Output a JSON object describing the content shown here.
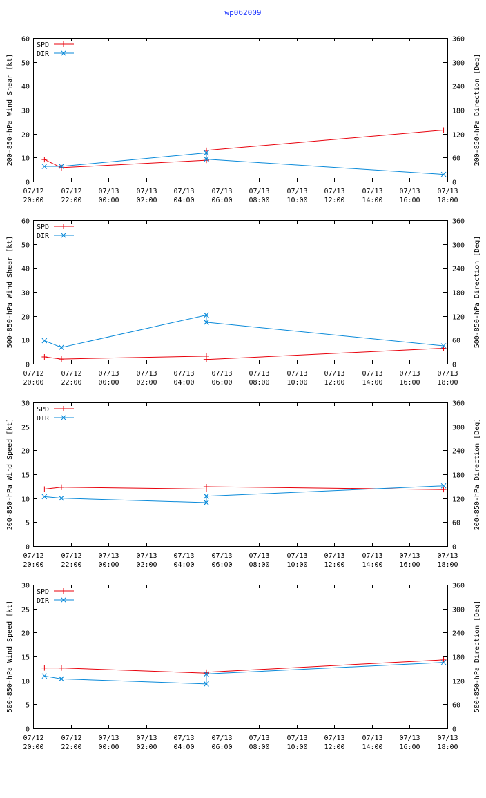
{
  "page_title": "wp062009",
  "colors": {
    "spd": "#e8000b",
    "dir": "#0a8ad9",
    "axis": "#000000",
    "text": "#000000",
    "title": "#1a33ff"
  },
  "x_tick_labels": [
    [
      "07/12",
      "20:00"
    ],
    [
      "07/12",
      "22:00"
    ],
    [
      "07/13",
      "00:00"
    ],
    [
      "07/13",
      "02:00"
    ],
    [
      "07/13",
      "04:00"
    ],
    [
      "07/13",
      "06:00"
    ],
    [
      "07/13",
      "08:00"
    ],
    [
      "07/13",
      "10:00"
    ],
    [
      "07/13",
      "12:00"
    ],
    [
      "07/13",
      "14:00"
    ],
    [
      "07/13",
      "16:00"
    ],
    [
      "07/13",
      "18:00"
    ]
  ],
  "legend_labels": {
    "spd": "SPD",
    "dir": "DIR"
  },
  "chart_data": [
    {
      "type": "line",
      "ylabel": "200-850-hPa Wind Shear [kt]",
      "y2label": "200-850-hPa Direction [Deg]",
      "xlim": [
        20,
        42
      ],
      "ylim": [
        0,
        60
      ],
      "yticks": [
        0,
        10,
        20,
        30,
        40,
        50,
        60
      ],
      "y2lim": [
        0,
        360
      ],
      "y2ticks": [
        0,
        60,
        120,
        180,
        240,
        300,
        360
      ],
      "legend": "top-left",
      "series": [
        {
          "name": "SPD",
          "axis": "left",
          "segments": [
            {
              "x": [
                20.6,
                21.5
              ],
              "y": [
                9.2,
                5.8
              ]
            },
            {
              "x": [
                21.5,
                29.2
              ],
              "y": [
                5.8,
                8.9
              ]
            },
            {
              "x": [
                29.2,
                29.2
              ],
              "y": [
                8.9,
                13.0
              ]
            },
            {
              "x": [
                29.2,
                41.8
              ],
              "y": [
                13.0,
                21.5
              ]
            }
          ]
        },
        {
          "name": "DIR",
          "axis": "right",
          "segments": [
            {
              "x": [
                20.6,
                21.5
              ],
              "y": [
                38,
                38
              ]
            },
            {
              "x": [
                21.5,
                29.2
              ],
              "y": [
                38,
                72
              ]
            },
            {
              "x": [
                29.2,
                29.2
              ],
              "y": [
                72,
                56
              ]
            },
            {
              "x": [
                29.2,
                41.8
              ],
              "y": [
                56,
                18
              ]
            }
          ]
        }
      ]
    },
    {
      "type": "line",
      "ylabel": "500-850-hPa Wind Shear [kt]",
      "y2label": "500-850-hPa Direction [Deg]",
      "xlim": [
        20,
        42
      ],
      "ylim": [
        0,
        60
      ],
      "yticks": [
        0,
        10,
        20,
        30,
        40,
        50,
        60
      ],
      "y2lim": [
        0,
        360
      ],
      "y2ticks": [
        0,
        60,
        120,
        180,
        240,
        300,
        360
      ],
      "legend": "top-left",
      "series": [
        {
          "name": "SPD",
          "axis": "left",
          "segments": [
            {
              "x": [
                20.6,
                21.5
              ],
              "y": [
                2.9,
                2.0
              ]
            },
            {
              "x": [
                21.5,
                29.2
              ],
              "y": [
                2.0,
                3.2
              ]
            },
            {
              "x": [
                29.2,
                29.2
              ],
              "y": [
                3.2,
                1.8
              ]
            },
            {
              "x": [
                29.2,
                41.8
              ],
              "y": [
                1.8,
                6.5
              ]
            }
          ]
        },
        {
          "name": "DIR",
          "axis": "right",
          "segments": [
            {
              "x": [
                20.6,
                21.5
              ],
              "y": [
                58,
                41
              ]
            },
            {
              "x": [
                21.5,
                29.2
              ],
              "y": [
                41,
                122
              ]
            },
            {
              "x": [
                29.2,
                29.2
              ],
              "y": [
                122,
                104
              ]
            },
            {
              "x": [
                29.2,
                41.8
              ],
              "y": [
                104,
                45
              ]
            }
          ]
        }
      ]
    },
    {
      "type": "line",
      "ylabel": "200-850-hPa Wind Speed [kt]",
      "y2label": "200-850-hPa Direction [Deg]",
      "xlim": [
        20,
        42
      ],
      "ylim": [
        0,
        30
      ],
      "yticks": [
        0,
        5,
        10,
        15,
        20,
        25,
        30
      ],
      "y2lim": [
        0,
        360
      ],
      "y2ticks": [
        0,
        60,
        120,
        180,
        240,
        300,
        360
      ],
      "legend": "top-left",
      "series": [
        {
          "name": "SPD",
          "axis": "left",
          "segments": [
            {
              "x": [
                20.6,
                21.5
              ],
              "y": [
                11.9,
                12.3
              ]
            },
            {
              "x": [
                21.5,
                29.2
              ],
              "y": [
                12.3,
                11.9
              ]
            },
            {
              "x": [
                29.2,
                29.2
              ],
              "y": [
                11.9,
                12.4
              ]
            },
            {
              "x": [
                29.2,
                41.8
              ],
              "y": [
                12.4,
                11.8
              ]
            }
          ]
        },
        {
          "name": "DIR",
          "axis": "right",
          "segments": [
            {
              "x": [
                20.6,
                21.5
              ],
              "y": [
                124,
                120
              ]
            },
            {
              "x": [
                21.5,
                29.2
              ],
              "y": [
                120,
                109
              ]
            },
            {
              "x": [
                29.2,
                29.2
              ],
              "y": [
                109,
                125
              ]
            },
            {
              "x": [
                29.2,
                41.8
              ],
              "y": [
                125,
                151
              ]
            }
          ]
        }
      ]
    },
    {
      "type": "line",
      "ylabel": "500-850-hPa Wind Speed [kt]",
      "y2label": "500-850-hPa Direction [Deg]",
      "xlim": [
        20,
        42
      ],
      "ylim": [
        0,
        30
      ],
      "yticks": [
        0,
        5,
        10,
        15,
        20,
        25,
        30
      ],
      "y2lim": [
        0,
        360
      ],
      "y2ticks": [
        0,
        60,
        120,
        180,
        240,
        300,
        360
      ],
      "legend": "top-left",
      "series": [
        {
          "name": "SPD",
          "axis": "left",
          "segments": [
            {
              "x": [
                20.6,
                21.5
              ],
              "y": [
                12.6,
                12.6
              ]
            },
            {
              "x": [
                21.5,
                29.2
              ],
              "y": [
                12.6,
                11.5
              ]
            },
            {
              "x": [
                29.2,
                29.2
              ],
              "y": [
                11.5,
                11.7
              ]
            },
            {
              "x": [
                29.2,
                41.8
              ],
              "y": [
                11.7,
                14.3
              ]
            }
          ]
        },
        {
          "name": "DIR",
          "axis": "right",
          "segments": [
            {
              "x": [
                20.6,
                21.5
              ],
              "y": [
                131,
                124
              ]
            },
            {
              "x": [
                21.5,
                29.2
              ],
              "y": [
                124,
                111
              ]
            },
            {
              "x": [
                29.2,
                29.2
              ],
              "y": [
                111,
                136
              ]
            },
            {
              "x": [
                29.2,
                41.8
              ],
              "y": [
                136,
                165
              ]
            }
          ]
        }
      ]
    }
  ]
}
